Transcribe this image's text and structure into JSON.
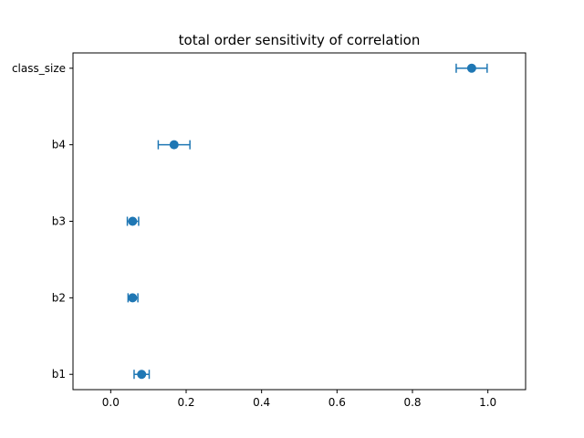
{
  "chart_data": {
    "type": "scatter",
    "title": "total order sensitivity of correlation",
    "xlabel": "",
    "ylabel": "",
    "xlim": [
      -0.1,
      1.1
    ],
    "xticks": [
      0.0,
      0.2,
      0.4,
      0.6,
      0.8,
      1.0
    ],
    "xtick_labels": [
      "0.0",
      "0.2",
      "0.4",
      "0.6",
      "0.8",
      "1.0"
    ],
    "categories": [
      "b1",
      "b2",
      "b3",
      "b4",
      "class_size"
    ],
    "series": [
      {
        "values": [
          0.082,
          0.058,
          0.058,
          0.168,
          0.957
        ],
        "err_low": [
          0.062,
          0.046,
          0.044,
          0.126,
          0.916
        ],
        "err_high": [
          0.102,
          0.072,
          0.074,
          0.21,
          0.998
        ]
      }
    ],
    "grid": false,
    "color": "#1f77b4"
  }
}
